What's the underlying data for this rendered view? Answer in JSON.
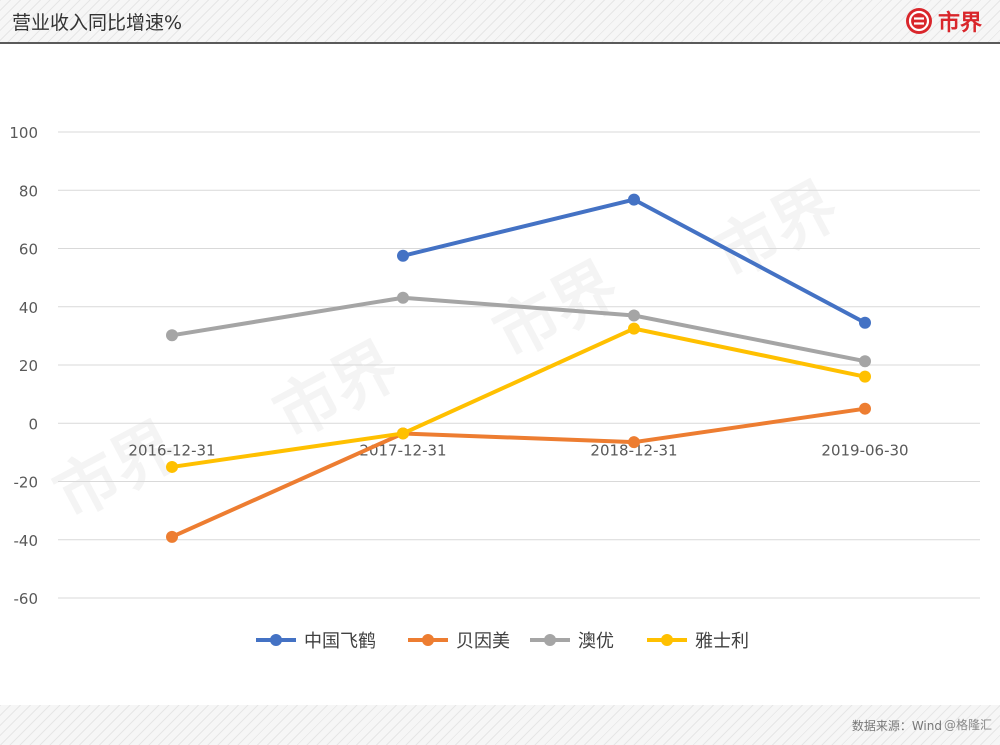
{
  "header": {
    "title": "营业收入同比增速%",
    "brand_text": "市界"
  },
  "footer": {
    "source": "数据来源：Wind",
    "credit": "@格隆汇"
  },
  "colors": {
    "brand": "#d9262b",
    "grid": "#d9d9d9",
    "tick_text": "#595959"
  },
  "chart_data": {
    "type": "line",
    "title": "",
    "xlabel": "",
    "ylabel": "",
    "ylim": [
      -60,
      100
    ],
    "y_ticks": [
      100,
      80,
      60,
      40,
      20,
      0,
      -20,
      -40,
      -60
    ],
    "categories": [
      "2016-12-31",
      "2017-12-31",
      "2018-12-31",
      "2019-06-30"
    ],
    "grid": true,
    "legend_position": "bottom",
    "series": [
      {
        "name": "中国飞鹤",
        "color": "#4472c4",
        "values": [
          null,
          57.5,
          76.8,
          34.5
        ]
      },
      {
        "name": "贝因美",
        "color": "#ed7d31",
        "values": [
          -39,
          -3.5,
          -6.5,
          5
        ]
      },
      {
        "name": "澳优",
        "color": "#a5a5a5",
        "values": [
          30.2,
          43.1,
          37,
          21.3
        ]
      },
      {
        "name": "雅士利",
        "color": "#ffc000",
        "values": [
          -15,
          -3.5,
          32.5,
          16
        ]
      }
    ]
  }
}
